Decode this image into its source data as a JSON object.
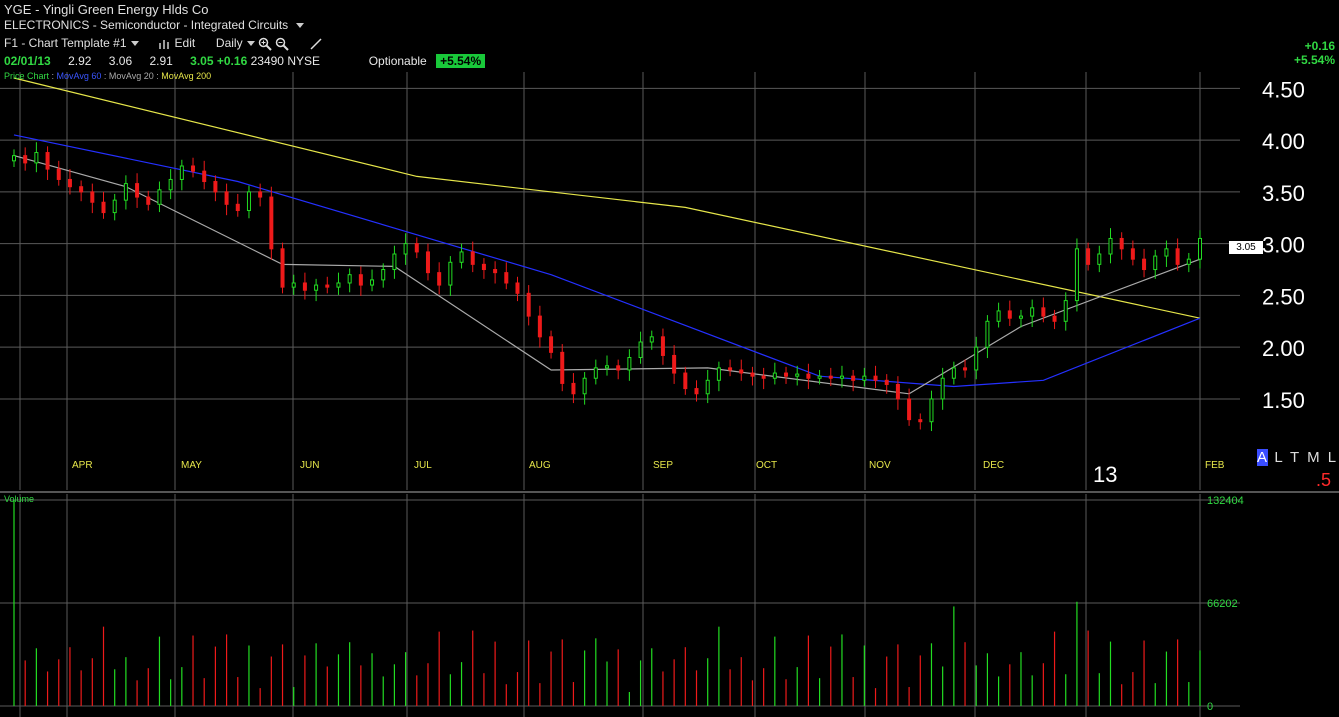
{
  "header": {
    "symbol": "YGE",
    "separator": "-",
    "company": "Yingli Green Energy Hlds Co",
    "sector": "ELECTRONICS",
    "subsector": "Semiconductor",
    "industry": "Integrated Circuits",
    "template": "F1 - Chart Template #1",
    "edit_label": "Edit",
    "period": "Daily",
    "date": "02/01/13",
    "open": "2.92",
    "high": "3.06",
    "low": "2.91",
    "close": "3.05",
    "change": "+0.16",
    "volume": "23490",
    "exchange": "NYSE",
    "optionable": "Optionable",
    "pct_badge": "+5.54%",
    "top_right_change": "+0.16",
    "top_right_pct": "+5.54%"
  },
  "legend": {
    "price": "Price Chart",
    "ma60": "MovAvg 60",
    "ma20": "MovAvg 20",
    "ma200": "MovAvg 200"
  },
  "timeframe_menu": {
    "selected": "A",
    "rest": "L T M L"
  },
  "year_label": "13",
  "red_mark": ".5",
  "current_price_tag": "3.05",
  "colors": {
    "up": "#22dd22",
    "down": "#ee1a1a",
    "ma60": "#2430ff",
    "ma20": "#aaaaaa",
    "ma200": "#e6e64a",
    "grid": "#5a5a5a"
  },
  "chart_data": [
    {
      "type": "candlestick",
      "title": "Price Chart",
      "ylim": [
        1.2,
        4.6
      ],
      "y_ticks": [
        "1.50",
        "2.00",
        "2.50",
        "3.00",
        "3.50",
        "4.00",
        "4.50"
      ],
      "x_tick_labels": [
        "APR",
        "MAY",
        "JUN",
        "JUL",
        "AUG",
        "SEP",
        "OCT",
        "NOV",
        "DEC",
        "FEB"
      ],
      "close_path": [
        3.85,
        3.78,
        3.88,
        3.72,
        3.62,
        3.55,
        3.5,
        3.4,
        3.3,
        3.42,
        3.58,
        3.45,
        3.38,
        3.52,
        3.62,
        3.75,
        3.7,
        3.6,
        3.5,
        3.38,
        3.32,
        3.5,
        3.45,
        2.95,
        2.58,
        2.62,
        2.55,
        2.6,
        2.58,
        2.62,
        2.7,
        2.6,
        2.65,
        2.75,
        2.9,
        3.0,
        2.92,
        2.72,
        2.6,
        2.82,
        2.92,
        2.8,
        2.75,
        2.72,
        2.62,
        2.52,
        2.3,
        2.1,
        1.95,
        1.65,
        1.55,
        1.7,
        1.8,
        1.82,
        1.78,
        1.9,
        2.05,
        2.1,
        1.92,
        1.75,
        1.6,
        1.55,
        1.68,
        1.8,
        1.78,
        1.75,
        1.72,
        1.7,
        1.75,
        1.72,
        1.74,
        1.7,
        1.72,
        1.7,
        1.72,
        1.68,
        1.72,
        1.68,
        1.64,
        1.5,
        1.3,
        1.28,
        1.5,
        1.7,
        1.8,
        1.78,
        2.0,
        2.25,
        2.35,
        2.28,
        2.3,
        2.38,
        2.3,
        2.25,
        2.45,
        2.95,
        2.8,
        2.9,
        3.05,
        2.95,
        2.85,
        2.75,
        2.88,
        2.95,
        2.8,
        2.85,
        3.05
      ],
      "moving_averages": [
        {
          "name": "MovAvg 200",
          "x": [
            0,
            36,
            60,
            106
          ],
          "y": [
            4.6,
            3.65,
            3.35,
            2.28
          ]
        },
        {
          "name": "MovAvg 60",
          "x": [
            0,
            20,
            48,
            72,
            84,
            92,
            106
          ],
          "y": [
            4.05,
            3.6,
            2.7,
            1.72,
            1.62,
            1.68,
            2.28
          ]
        },
        {
          "name": "MovAvg 20",
          "x": [
            0,
            10,
            24,
            34,
            48,
            62,
            80,
            90,
            106
          ],
          "y": [
            3.85,
            3.55,
            2.8,
            2.78,
            1.78,
            1.8,
            1.55,
            2.2,
            2.85
          ]
        }
      ]
    },
    {
      "type": "bar",
      "title": "Volume",
      "ylim": [
        0,
        132404
      ],
      "y_ticks": [
        "0",
        "66202",
        "132404"
      ],
      "notable_bars": [
        {
          "bar": 0,
          "value": 132404
        },
        {
          "bar": 84,
          "value": 64000
        },
        {
          "bar": 95,
          "value": 67000
        }
      ]
    }
  ]
}
